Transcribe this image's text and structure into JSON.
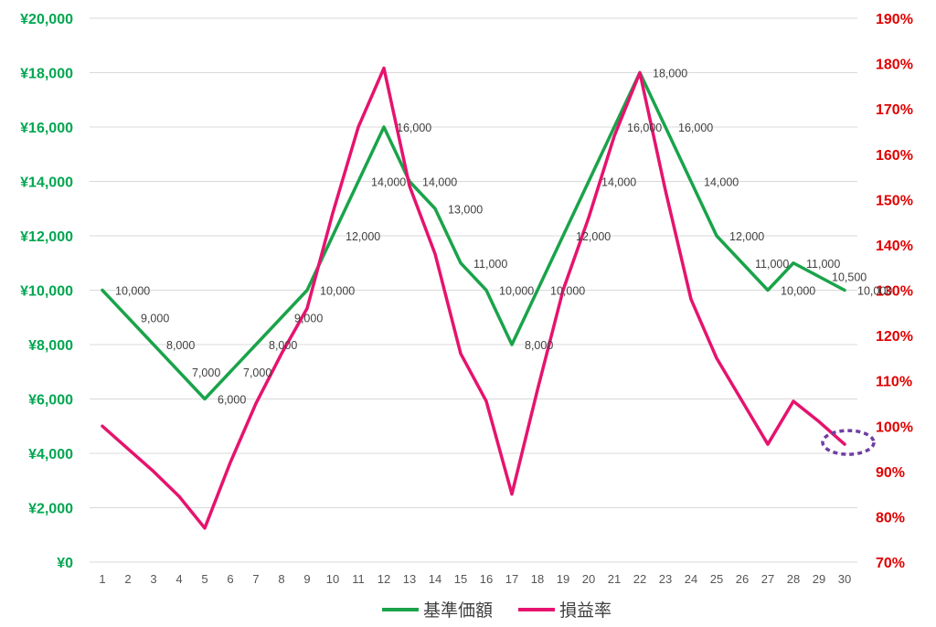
{
  "chart_data": {
    "type": "line",
    "x": [
      1,
      2,
      3,
      4,
      5,
      6,
      7,
      8,
      9,
      10,
      11,
      12,
      13,
      14,
      15,
      16,
      17,
      18,
      19,
      20,
      21,
      22,
      23,
      24,
      25,
      26,
      27,
      28,
      29,
      30
    ],
    "series": [
      {
        "name": "基準価額",
        "axis": "left",
        "color": "#1aa34a",
        "values": [
          10000,
          9000,
          8000,
          7000,
          6000,
          7000,
          8000,
          9000,
          10000,
          12000,
          14000,
          16000,
          14000,
          13000,
          11000,
          10000,
          8000,
          10000,
          12000,
          14000,
          16000,
          18000,
          16000,
          14000,
          12000,
          11000,
          10000,
          11000,
          10500,
          10000
        ],
        "labels": [
          "10,000",
          "9,000",
          "8,000",
          "7,000",
          "6,000",
          "7,000",
          "8,000",
          "9,000",
          "10,000",
          "12,000",
          "14,000",
          "16,000",
          "14,000",
          "13,000",
          "11,000",
          "10,000",
          "8,000",
          "10,000",
          "12,000",
          "14,000",
          "16,000",
          "18,000",
          "16,000",
          "14,000",
          "12,000",
          "11,000",
          "10,000",
          "11,000",
          "10,500",
          "10,000"
        ]
      },
      {
        "name": "損益率",
        "axis": "right",
        "color": "#e6136e",
        "values": [
          100,
          95,
          90,
          84.5,
          77.5,
          92,
          105,
          116,
          126,
          147,
          166,
          179,
          153,
          138,
          116,
          105.5,
          85,
          108,
          130,
          146,
          164,
          178,
          152,
          128,
          115,
          105.5,
          96,
          105.5,
          101,
          96
        ]
      }
    ],
    "y_left": {
      "min": 0,
      "max": 20000,
      "ticks": [
        0,
        2000,
        4000,
        6000,
        8000,
        10000,
        12000,
        14000,
        16000,
        18000,
        20000
      ],
      "tick_labels": [
        "¥0",
        "¥2,000",
        "¥4,000",
        "¥6,000",
        "¥8,000",
        "¥10,000",
        "¥12,000",
        "¥14,000",
        "¥16,000",
        "¥18,000",
        "¥20,000"
      ],
      "color": "#00a651"
    },
    "y_right": {
      "min": 70,
      "max": 190,
      "ticks": [
        70,
        80,
        90,
        100,
        110,
        120,
        130,
        140,
        150,
        160,
        170,
        180,
        190
      ],
      "tick_labels": [
        "70%",
        "80%",
        "90%",
        "100%",
        "110%",
        "120%",
        "130%",
        "140%",
        "150%",
        "160%",
        "170%",
        "180%",
        "190%"
      ],
      "color": "#e00000"
    },
    "x_tick_labels": [
      "1",
      "2",
      "3",
      "4",
      "5",
      "6",
      "7",
      "8",
      "9",
      "10",
      "11",
      "12",
      "13",
      "14",
      "15",
      "16",
      "17",
      "18",
      "19",
      "20",
      "21",
      "22",
      "23",
      "24",
      "25",
      "26",
      "27",
      "28",
      "29",
      "30"
    ],
    "grid": true,
    "legend": "bottom-center",
    "annotation": {
      "type": "dashed-ellipse",
      "x": 30,
      "series": "損益率",
      "color": "#6e3fa0"
    }
  }
}
